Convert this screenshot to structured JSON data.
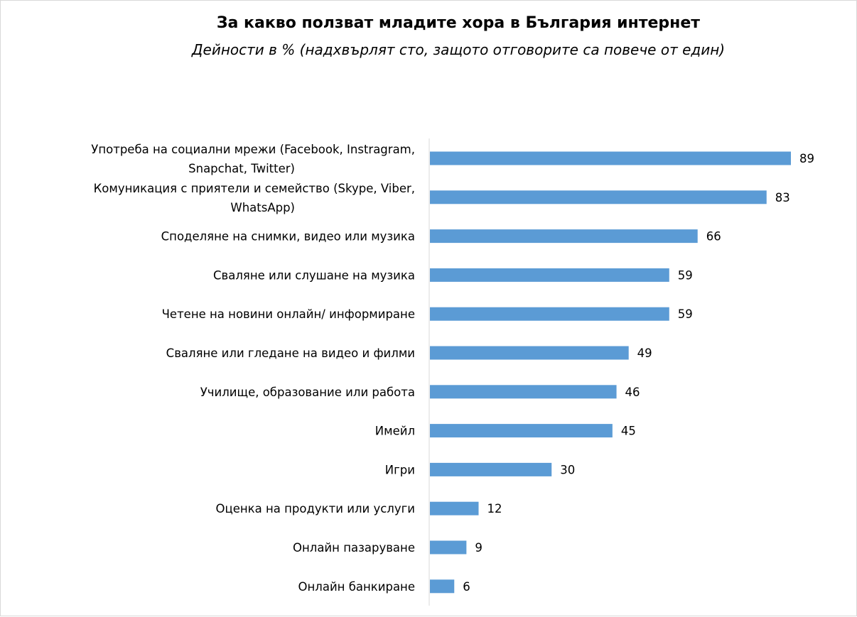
{
  "chart_data": {
    "type": "bar",
    "orientation": "horizontal",
    "title": "За какво ползват младите хора в България интернет",
    "subtitle": "Дейности в % (надхвърлят сто, защото отговорите са повече от един)",
    "categories": [
      [
        "Употреба на социални мрежи (Facebook, Instragram,",
        "Snapchat, Twitter)"
      ],
      [
        "Комуникация с приятели и семейство (Skype, Viber,",
        "WhatsApp)"
      ],
      [
        "Споделяне на снимки, видео или музика"
      ],
      [
        "Сваляне или слушане на музика"
      ],
      [
        "Четене на новини онлайн/ информиране"
      ],
      [
        "Сваляне или гледане на видео и филми"
      ],
      [
        "Училище, образование или работа"
      ],
      [
        "Имейл"
      ],
      [
        "Игри"
      ],
      [
        "Оценка на продукти или услуги"
      ],
      [
        "Онлайн пазаруване"
      ],
      [
        "Онлайн банкиране"
      ]
    ],
    "values": [
      89,
      83,
      66,
      59,
      59,
      49,
      46,
      45,
      30,
      12,
      9,
      6
    ],
    "xlim": [
      0,
      89
    ],
    "gridlines": false,
    "legend": "none",
    "bar_color": "#5b9bd5"
  }
}
